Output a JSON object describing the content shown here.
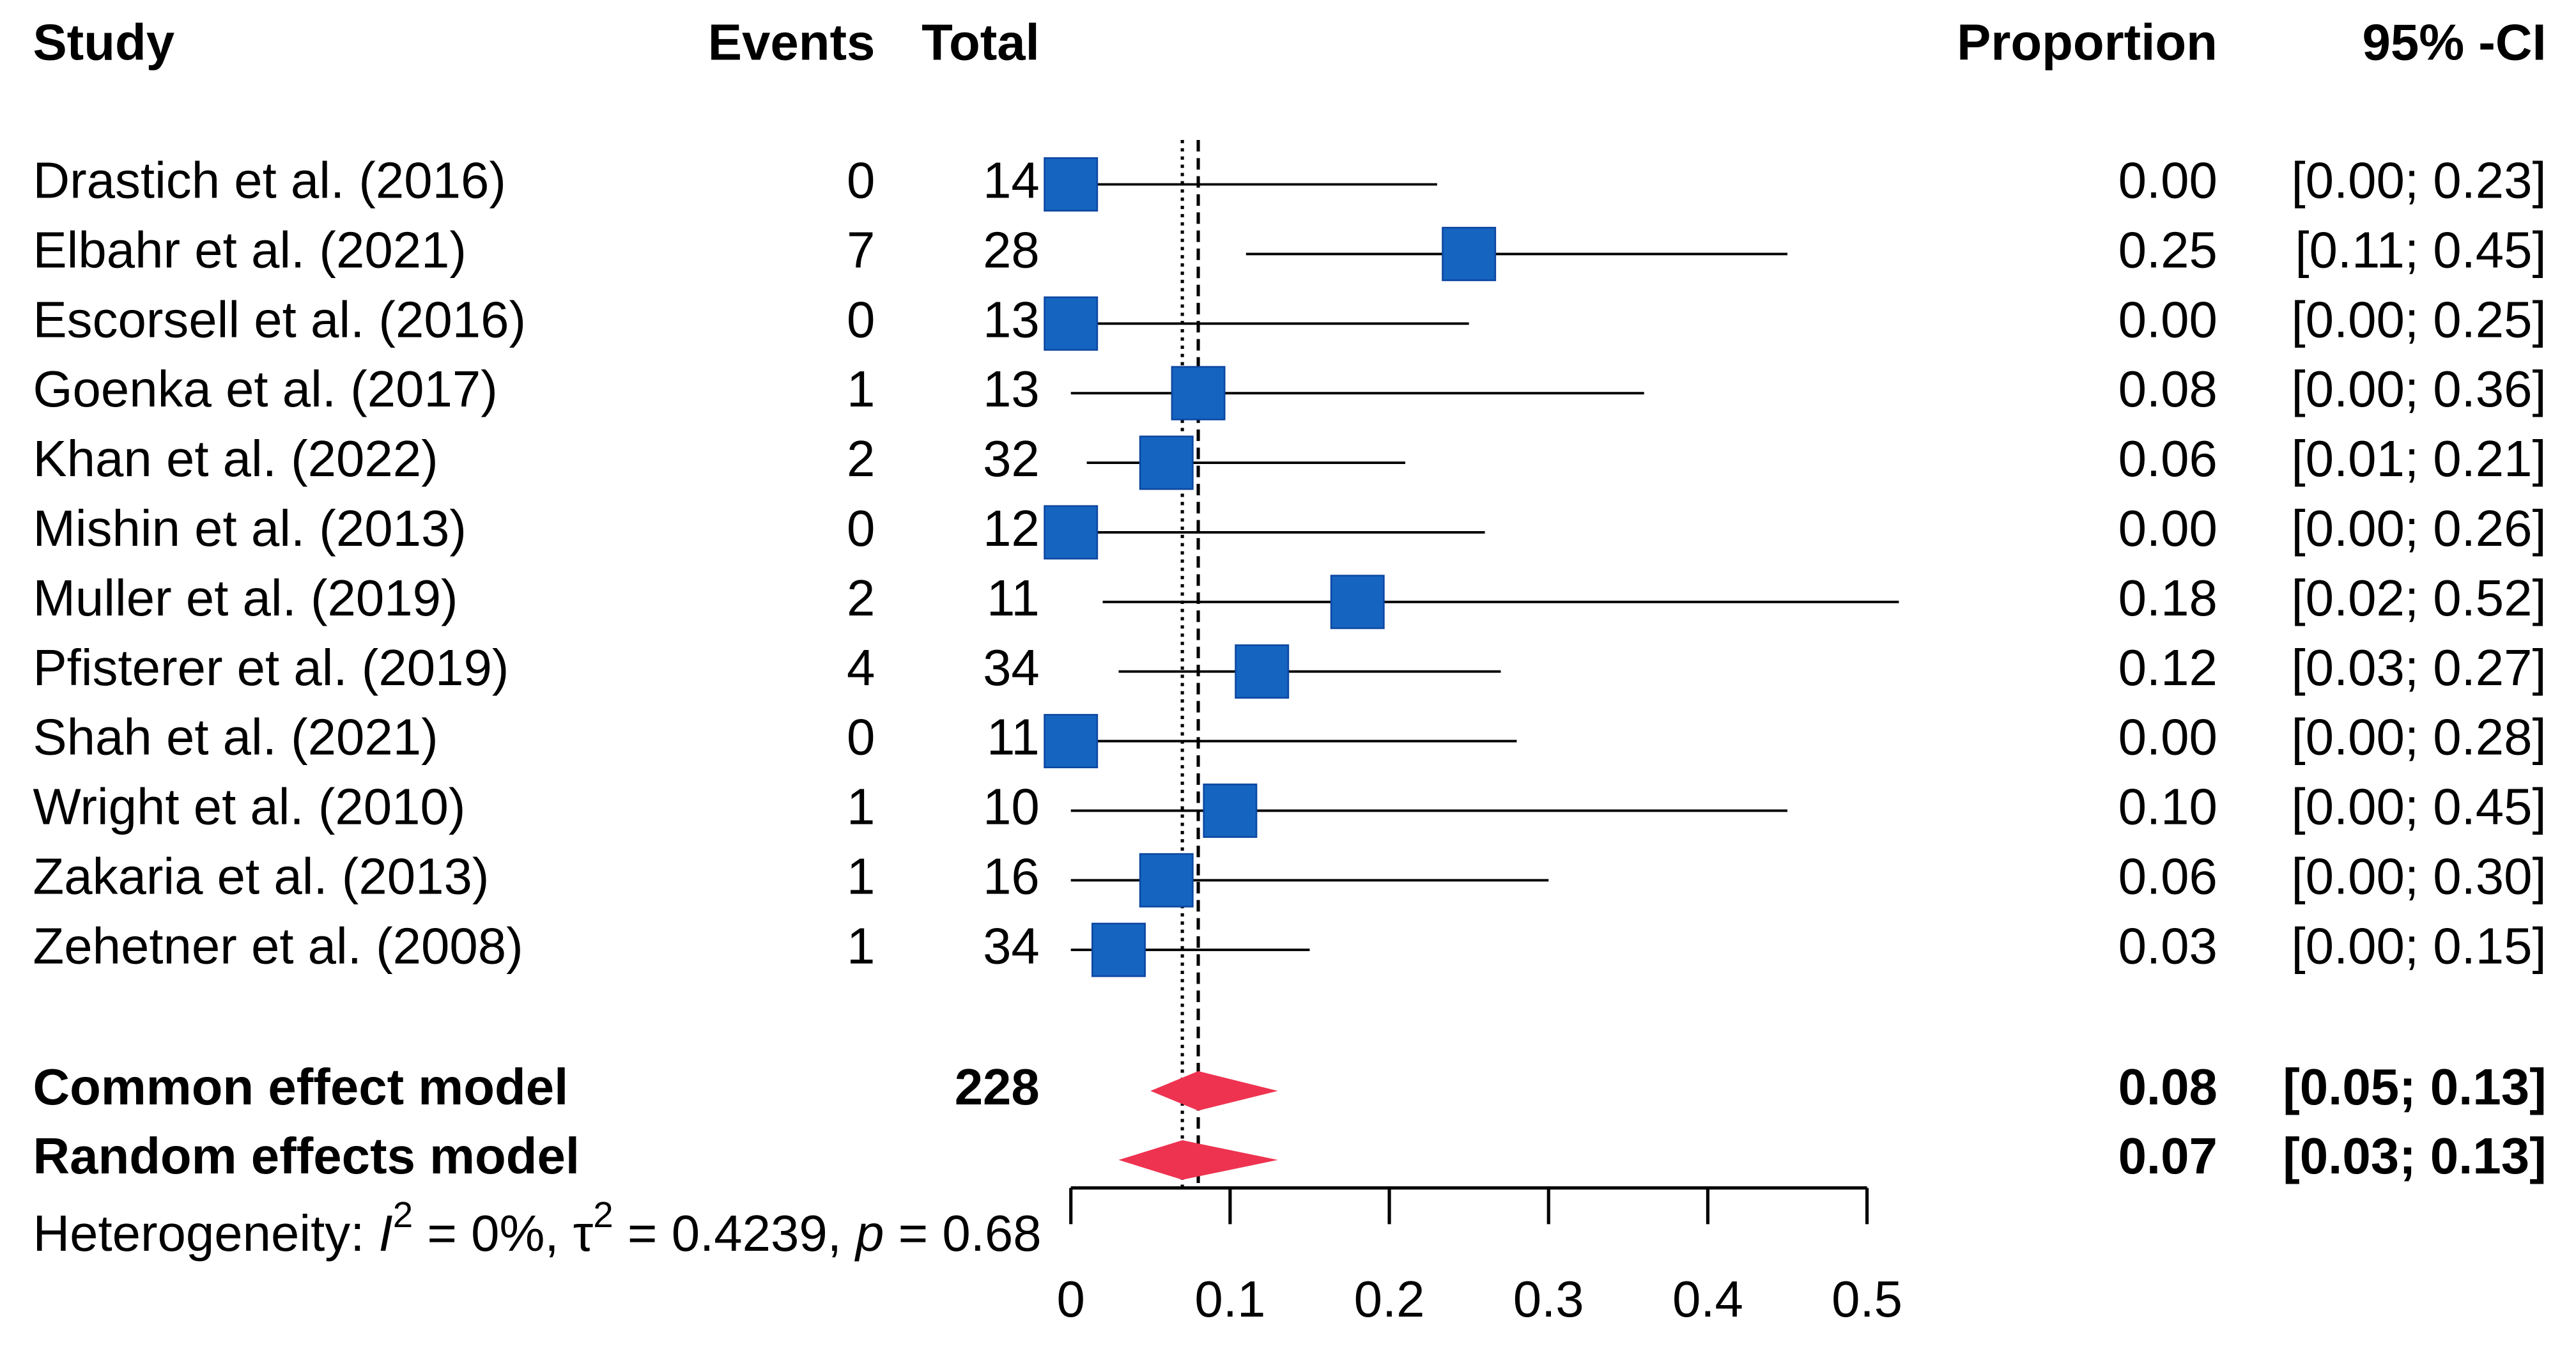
{
  "chart_data": {
    "type": "forest",
    "columns": {
      "study": "Study",
      "events": "Events",
      "total": "Total",
      "proportion": "Proportion",
      "ci": "95% -CI"
    },
    "categories": [
      "Drastich et al. (2016)",
      "Elbahr et al. (2021)",
      "Escorsell et al. (2016)",
      "Goenka et al. (2017)",
      "Khan  et al. (2022)",
      "Mishin et al. (2013)",
      "Muller et al. (2019)",
      "Pfisterer et al. (2019)",
      "Shah et al. (2021)",
      "Wright et al. (2010)",
      "Zakaria et al. (2013)",
      "Zehetner et al. (2008)"
    ],
    "events": [
      0,
      7,
      0,
      1,
      2,
      0,
      2,
      4,
      0,
      1,
      1,
      1
    ],
    "totals": [
      14,
      28,
      13,
      13,
      32,
      12,
      11,
      34,
      11,
      10,
      16,
      34
    ],
    "values": [
      0,
      0.25,
      0,
      0.08,
      0.06,
      0,
      0.18,
      0.12,
      0,
      0.1,
      0.06,
      0.03
    ],
    "value_labels": [
      "0.00",
      "0.25",
      "0.00",
      "0.08",
      "0.06",
      "0.00",
      "0.18",
      "0.12",
      "0.00",
      "0.10",
      "0.06",
      "0.03"
    ],
    "ci_lower": [
      0,
      0.11,
      0,
      0,
      0.01,
      0,
      0.02,
      0.03,
      0,
      0,
      0,
      0
    ],
    "ci_upper": [
      0.23,
      0.45,
      0.25,
      0.36,
      0.21,
      0.26,
      0.52,
      0.27,
      0.28,
      0.45,
      0.3,
      0.15
    ],
    "ci_labels": [
      "[0.00; 0.23]",
      "[0.11; 0.45]",
      "[0.00; 0.25]",
      "[0.00; 0.36]",
      "[0.01; 0.21]",
      "[0.00; 0.26]",
      "[0.02; 0.52]",
      "[0.03; 0.27]",
      "[0.00; 0.28]",
      "[0.00; 0.45]",
      "[0.00; 0.30]",
      "[0.00; 0.15]"
    ],
    "color": "#1565c0",
    "models": [
      {
        "name": "Common effect model",
        "total": 228,
        "value": 0.08,
        "value_label": "0.08",
        "ci_lower": 0.05,
        "ci_upper": 0.13,
        "ci_label": "[0.05; 0.13]",
        "color": "#ee3350",
        "line": "dashed"
      },
      {
        "name": "Random effects model",
        "value": 0.07,
        "value_label": "0.07",
        "ci_lower": 0.03,
        "ci_upper": 0.13,
        "ci_label": "[0.03; 0.13]",
        "color": "#ee3350",
        "line": "dotted"
      }
    ],
    "heterogeneity": [
      "Heterogeneity: ",
      "I",
      "2",
      " = 0%, ",
      "τ",
      "2",
      " = 0.4239, ",
      "p",
      " = 0.68"
    ],
    "xlim": [
      0,
      0.5
    ],
    "xticks": [
      0,
      0.1,
      0.2,
      0.3,
      0.4,
      0.5
    ]
  }
}
